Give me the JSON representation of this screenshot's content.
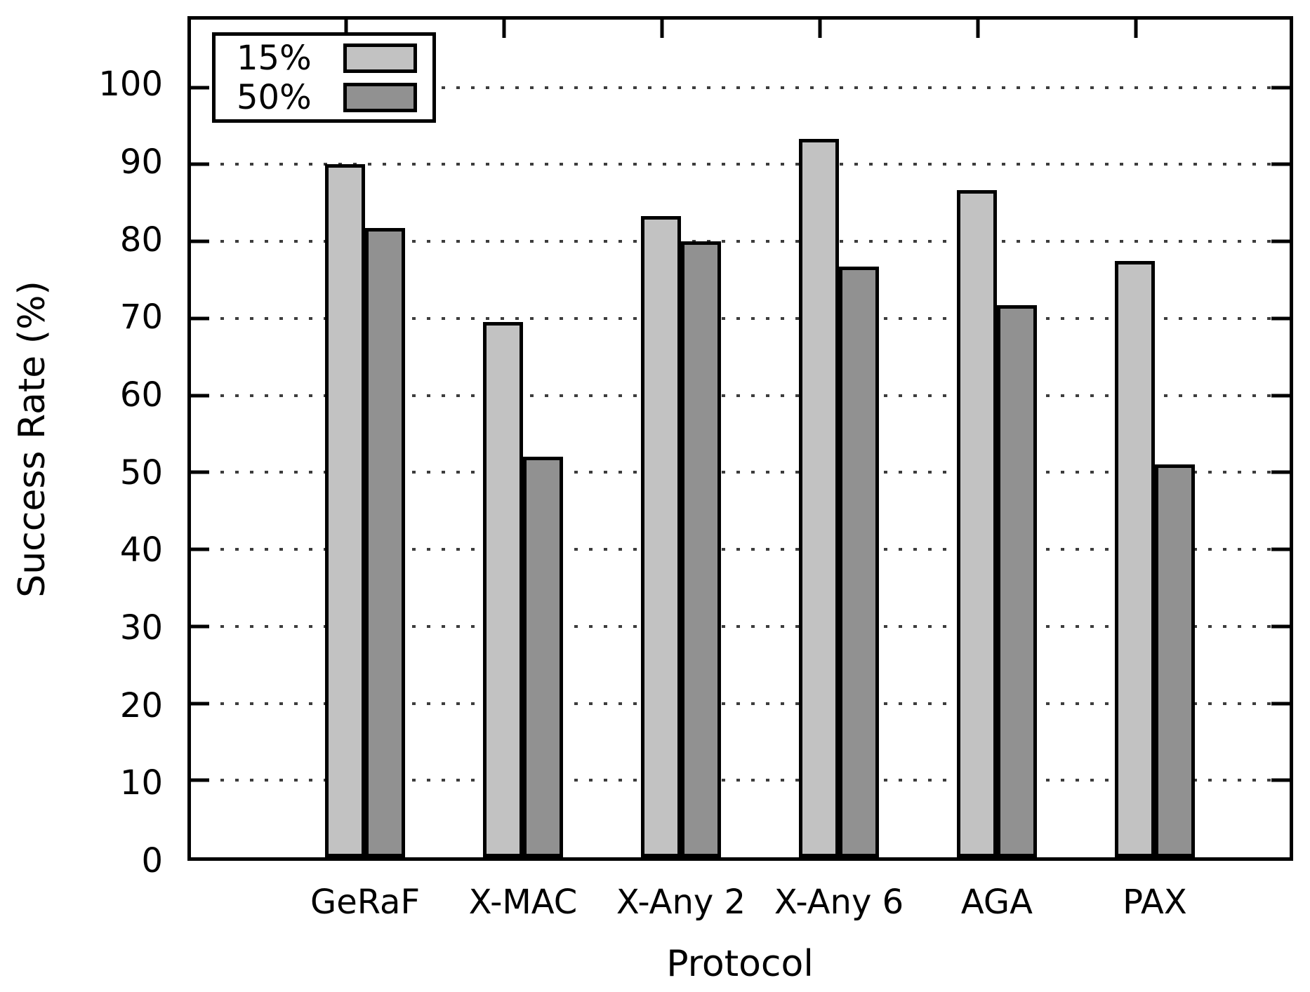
{
  "chart_data": {
    "type": "bar",
    "title": "",
    "xlabel": "Protocol",
    "ylabel": "Success Rate (%)",
    "categories": [
      "GeRaF",
      "X-MAC",
      "X-Any 2",
      "X-Any 6",
      "AGA",
      "PAX"
    ],
    "series": [
      {
        "name": "15%",
        "color": "#c2c2c2",
        "values": [
          90.0,
          69.5,
          83.3,
          93.3,
          86.7,
          77.5
        ]
      },
      {
        "name": "50%",
        "color": "#919191",
        "values": [
          81.7,
          52.0,
          80.0,
          76.7,
          71.7,
          51.0
        ]
      }
    ],
    "ylim": [
      0,
      110
    ],
    "yticks": [
      0,
      10,
      20,
      30,
      40,
      50,
      60,
      70,
      80,
      90,
      100
    ],
    "grid": "dotted-horizontal",
    "legend_position": "top-left",
    "legend_entries": [
      "15%",
      "50%"
    ]
  },
  "colors": {
    "background": "#ffffff",
    "axis": "#000000",
    "grid_dots": "#3d3d3d",
    "bar_light": "#c2c2c2",
    "bar_dark": "#919191"
  }
}
